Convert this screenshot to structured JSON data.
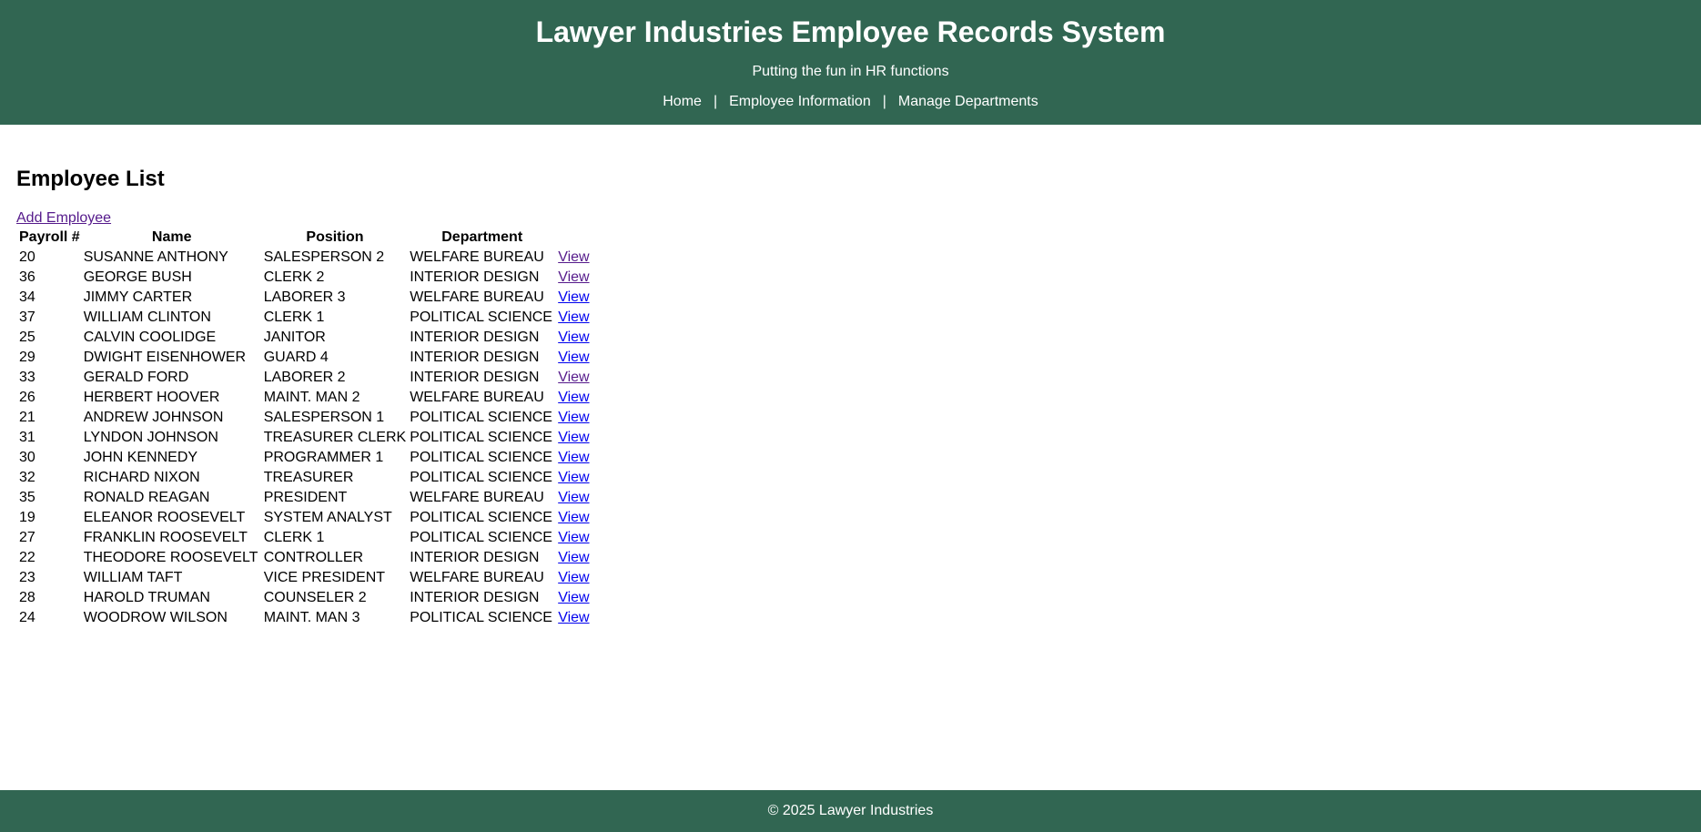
{
  "header": {
    "title": "Lawyer Industries Employee Records System",
    "subtitle": "Putting the fun in HR functions",
    "nav_separator": "|",
    "nav": [
      {
        "label": "Home"
      },
      {
        "label": "Employee Information"
      },
      {
        "label": "Manage Departments"
      }
    ]
  },
  "main": {
    "heading": "Employee List",
    "add_link_label": "Add Employee",
    "table": {
      "headers": [
        "Payroll #",
        "Name",
        "Position",
        "Department"
      ],
      "view_label": "View",
      "rows": [
        {
          "payroll": "20",
          "name": "SUSANNE ANTHONY",
          "position": "SALESPERSON 2",
          "department": "WELFARE BUREAU",
          "view_visited": true
        },
        {
          "payroll": "36",
          "name": "GEORGE BUSH",
          "position": "CLERK 2",
          "department": "INTERIOR DESIGN",
          "view_visited": true
        },
        {
          "payroll": "34",
          "name": "JIMMY CARTER",
          "position": "LABORER 3",
          "department": "WELFARE BUREAU",
          "view_visited": false
        },
        {
          "payroll": "37",
          "name": "WILLIAM CLINTON",
          "position": "CLERK 1",
          "department": "POLITICAL SCIENCE",
          "view_visited": false
        },
        {
          "payroll": "25",
          "name": "CALVIN COOLIDGE",
          "position": "JANITOR",
          "department": "INTERIOR DESIGN",
          "view_visited": false
        },
        {
          "payroll": "29",
          "name": "DWIGHT EISENHOWER",
          "position": "GUARD 4",
          "department": "INTERIOR DESIGN",
          "view_visited": false
        },
        {
          "payroll": "33",
          "name": "GERALD FORD",
          "position": "LABORER 2",
          "department": "INTERIOR DESIGN",
          "view_visited": true
        },
        {
          "payroll": "26",
          "name": "HERBERT HOOVER",
          "position": "MAINT. MAN 2",
          "department": "WELFARE BUREAU",
          "view_visited": false
        },
        {
          "payroll": "21",
          "name": "ANDREW JOHNSON",
          "position": "SALESPERSON 1",
          "department": "POLITICAL SCIENCE",
          "view_visited": false
        },
        {
          "payroll": "31",
          "name": "LYNDON JOHNSON",
          "position": "TREASURER CLERK",
          "department": "POLITICAL SCIENCE",
          "view_visited": false
        },
        {
          "payroll": "30",
          "name": "JOHN KENNEDY",
          "position": "PROGRAMMER 1",
          "department": "POLITICAL SCIENCE",
          "view_visited": false
        },
        {
          "payroll": "32",
          "name": "RICHARD NIXON",
          "position": "TREASURER",
          "department": "POLITICAL SCIENCE",
          "view_visited": false
        },
        {
          "payroll": "35",
          "name": "RONALD REAGAN",
          "position": "PRESIDENT",
          "department": "WELFARE BUREAU",
          "view_visited": false
        },
        {
          "payroll": "19",
          "name": "ELEANOR ROOSEVELT",
          "position": "SYSTEM ANALYST",
          "department": "POLITICAL SCIENCE",
          "view_visited": false
        },
        {
          "payroll": "27",
          "name": "FRANKLIN ROOSEVELT",
          "position": "CLERK 1",
          "department": "POLITICAL SCIENCE",
          "view_visited": false
        },
        {
          "payroll": "22",
          "name": "THEODORE ROOSEVELT",
          "position": "CONTROLLER",
          "department": "INTERIOR DESIGN",
          "view_visited": false
        },
        {
          "payroll": "23",
          "name": "WILLIAM TAFT",
          "position": "VICE PRESIDENT",
          "department": "WELFARE BUREAU",
          "view_visited": false
        },
        {
          "payroll": "28",
          "name": "HAROLD TRUMAN",
          "position": "COUNSELER 2",
          "department": "INTERIOR DESIGN",
          "view_visited": false
        },
        {
          "payroll": "24",
          "name": "WOODROW WILSON",
          "position": "MAINT. MAN 3",
          "department": "POLITICAL SCIENCE",
          "view_visited": false
        }
      ]
    }
  },
  "footer": {
    "copyright": "© 2025 Lawyer Industries"
  },
  "colors": {
    "brand_green": "#316652",
    "link_blue": "#0000EE",
    "visited_purple": "#551A8B"
  }
}
